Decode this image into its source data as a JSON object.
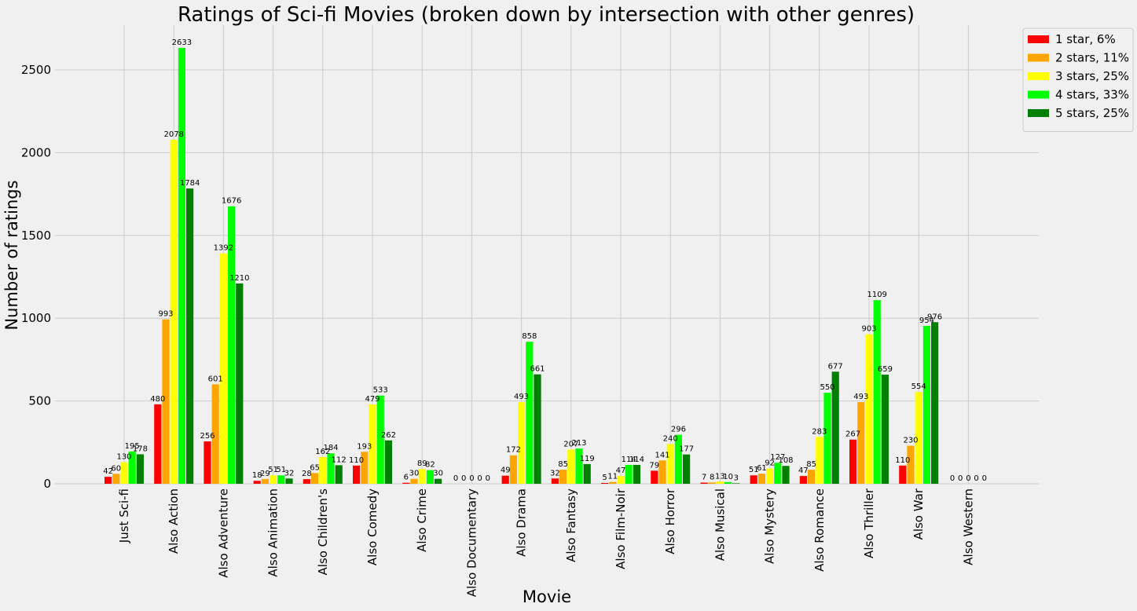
{
  "chart_data": {
    "type": "bar",
    "title": "Ratings of Sci-fi Movies (broken down by intersection with other genres)",
    "xlabel": "Movie",
    "ylabel": "Number of ratings",
    "ylim": [
      0,
      2750
    ],
    "yticks": [
      0,
      500,
      1000,
      1500,
      2000,
      2500
    ],
    "grid": true,
    "legend_position": "top-right",
    "categories": [
      "Just Sci-fi",
      "Also Action",
      "Also Adventure",
      "Also Animation",
      "Also Children's",
      "Also Comedy",
      "Also Crime",
      "Also Documentary",
      "Also Drama",
      "Also Fantasy",
      "Also Film-Noir",
      "Also Horror",
      "Also Musical",
      "Also Mystery",
      "Also Romance",
      "Also Thriller",
      "Also War",
      "Also Western"
    ],
    "series": [
      {
        "name": "1 star, 6%",
        "color": "#ff0000",
        "values": [
          42,
          480,
          256,
          18,
          28,
          110,
          6,
          0,
          49,
          32,
          5,
          79,
          7,
          51,
          47,
          267,
          110,
          0
        ]
      },
      {
        "name": "2 stars, 11%",
        "color": "#ffa500",
        "values": [
          60,
          993,
          601,
          29,
          65,
          193,
          30,
          0,
          172,
          85,
          11,
          141,
          8,
          61,
          85,
          493,
          230,
          0
        ]
      },
      {
        "name": "3 stars, 25%",
        "color": "#ffff00",
        "values": [
          130,
          2078,
          1392,
          51,
          162,
          479,
          89,
          0,
          493,
          207,
          47,
          240,
          13,
          92,
          283,
          903,
          554,
          0
        ]
      },
      {
        "name": "4 stars, 33%",
        "color": "#00ff00",
        "values": [
          195,
          2633,
          1676,
          51,
          184,
          533,
          82,
          0,
          858,
          213,
          114,
          296,
          10,
          127,
          550,
          1109,
          954,
          0
        ]
      },
      {
        "name": "5 stars, 25%",
        "color": "#008000",
        "values": [
          178,
          1784,
          1210,
          32,
          112,
          262,
          30,
          0,
          661,
          119,
          114,
          177,
          3,
          108,
          677,
          659,
          976,
          0
        ]
      }
    ]
  }
}
